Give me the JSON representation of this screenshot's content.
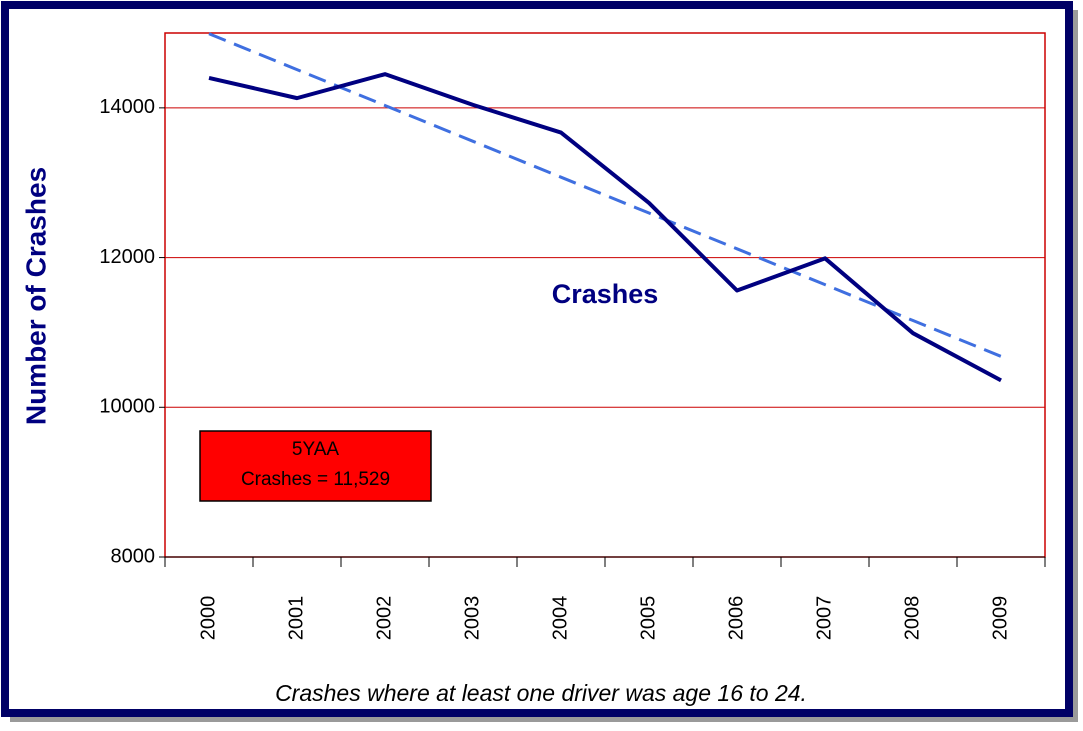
{
  "chart_data": {
    "type": "line",
    "ylabel": "Number of Crashes",
    "caption": "Crashes where at least one driver was age 16 to 24.",
    "annotation": [
      "5YAA",
      "Crashes = 11,529"
    ],
    "categories": [
      "2000",
      "2001",
      "2002",
      "2003",
      "2004",
      "2005",
      "2006",
      "2007",
      "2008",
      "2009"
    ],
    "series": [
      {
        "name": "Crashes",
        "color": "#000080",
        "values": [
          14400,
          14130,
          14450,
          14040,
          13670,
          12730,
          11560,
          11990,
          10990,
          10360
        ]
      }
    ],
    "trend": {
      "color": "#3f6fe0",
      "values": [
        14990,
        14511,
        14032,
        13553,
        13074,
        12595,
        12117,
        11638,
        11159,
        10680
      ]
    },
    "ylim": [
      8000,
      15000
    ],
    "yticks": [
      8000,
      10000,
      12000,
      14000
    ],
    "grid": true,
    "grid_color": "#cc0000",
    "annotation_color": "#ff0000"
  }
}
